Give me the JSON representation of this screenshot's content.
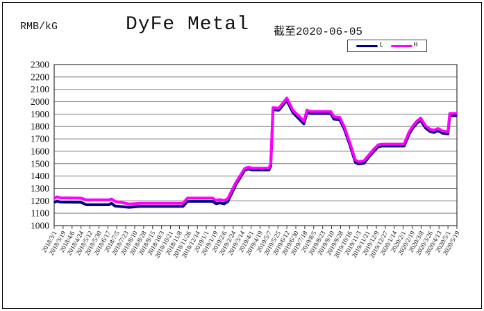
{
  "header": {
    "unit_label": "RMB/kG",
    "title": "DyFe Metal",
    "subtitle": "截至2020-06-05"
  },
  "legend": {
    "items": [
      {
        "label": "L",
        "color": "#000080"
      },
      {
        "label": "H",
        "color": "#FF00FF"
      }
    ]
  },
  "chart_data": {
    "type": "line",
    "title": "DyFe Metal",
    "subtitle": "截至2020-06-05",
    "ylabel": "RMB/kG",
    "ylim": [
      1000,
      2300
    ],
    "y_tick_step": 100,
    "y_ticks": [
      1000,
      1100,
      1200,
      1300,
      1400,
      1500,
      1600,
      1700,
      1800,
      1900,
      2000,
      2100,
      2200,
      2300
    ],
    "grid": true,
    "legend_position": "top-right",
    "categories": [
      "2018/3/1",
      "2018/3/19",
      "2018/4/6",
      "2018/4/24",
      "2018/5/12",
      "2018/5/30",
      "2018/6/17",
      "2018/7/5",
      "2018/7/23",
      "2018/8/10",
      "2018/8/28",
      "2018/9/15",
      "2018/10/3",
      "2018/10/21",
      "2018/11/8",
      "2018/11/26",
      "2018/12/14",
      "2019/1/1",
      "2019/1/19",
      "2019/2/6",
      "2019/2/24",
      "2019/3/14",
      "2019/4/1",
      "2019/4/19",
      "2019/5/7",
      "2019/5/25",
      "2019/6/12",
      "2019/6/30",
      "2019/7/18",
      "2019/8/5",
      "2019/8/23",
      "2019/9/10",
      "2019/9/28",
      "2019/10/16",
      "2019/11/3",
      "2019/11/21",
      "2019/12/9",
      "2019/12/27",
      "2020/1/14",
      "2020/2/1",
      "2020/2/19",
      "2020/3/8",
      "2020/3/26",
      "2020/4/13",
      "2020/5/1",
      "2020/5/19"
    ],
    "point_format": "[category_index, value_RMB_per_kG]",
    "series": [
      {
        "name": "L",
        "color": "#000080",
        "points": [
          [
            0,
            1186
          ],
          [
            0.3,
            1198
          ],
          [
            0.7,
            1190
          ],
          [
            3.0,
            1188
          ],
          [
            3.6,
            1168
          ],
          [
            6.1,
            1168
          ],
          [
            6.4,
            1180
          ],
          [
            6.8,
            1158
          ],
          [
            8.4,
            1148
          ],
          [
            9.6,
            1156
          ],
          [
            14.4,
            1156
          ],
          [
            14.9,
            1196
          ],
          [
            17.7,
            1196
          ],
          [
            18.1,
            1177
          ],
          [
            18.5,
            1184
          ],
          [
            19.0,
            1176
          ],
          [
            19.4,
            1194
          ],
          [
            20.3,
            1330
          ],
          [
            21.3,
            1448
          ],
          [
            21.7,
            1458
          ],
          [
            22.1,
            1450
          ],
          [
            24.0,
            1450
          ],
          [
            24.2,
            1480
          ],
          [
            24.45,
            1935
          ],
          [
            25.1,
            1932
          ],
          [
            26.0,
            2010
          ],
          [
            26.7,
            1910
          ],
          [
            27.5,
            1852
          ],
          [
            27.9,
            1822
          ],
          [
            28.25,
            1914
          ],
          [
            28.6,
            1905
          ],
          [
            30.9,
            1905
          ],
          [
            31.25,
            1860
          ],
          [
            31.9,
            1856
          ],
          [
            32.4,
            1782
          ],
          [
            33.1,
            1638
          ],
          [
            33.65,
            1512
          ],
          [
            34.0,
            1497
          ],
          [
            34.6,
            1503
          ],
          [
            35.1,
            1548
          ],
          [
            35.7,
            1598
          ],
          [
            36.2,
            1636
          ],
          [
            36.6,
            1642
          ],
          [
            39.1,
            1642
          ],
          [
            39.65,
            1738
          ],
          [
            40.1,
            1790
          ],
          [
            40.55,
            1828
          ],
          [
            40.95,
            1850
          ],
          [
            41.5,
            1788
          ],
          [
            42.0,
            1760
          ],
          [
            42.45,
            1752
          ],
          [
            42.9,
            1766
          ],
          [
            43.4,
            1746
          ],
          [
            44.0,
            1740
          ],
          [
            44.2,
            1886
          ],
          [
            45,
            1888
          ]
        ]
      },
      {
        "name": "H",
        "color": "#FF00FF",
        "points": [
          [
            0,
            1218
          ],
          [
            0.3,
            1232
          ],
          [
            0.7,
            1224
          ],
          [
            3.0,
            1222
          ],
          [
            3.6,
            1208
          ],
          [
            6.1,
            1208
          ],
          [
            6.4,
            1215
          ],
          [
            6.8,
            1196
          ],
          [
            8.4,
            1174
          ],
          [
            9.6,
            1181
          ],
          [
            14.4,
            1181
          ],
          [
            14.9,
            1222
          ],
          [
            17.7,
            1222
          ],
          [
            18.1,
            1203
          ],
          [
            18.5,
            1210
          ],
          [
            19.0,
            1202
          ],
          [
            19.4,
            1218
          ],
          [
            20.3,
            1348
          ],
          [
            21.3,
            1462
          ],
          [
            21.7,
            1472
          ],
          [
            22.1,
            1464
          ],
          [
            24.0,
            1464
          ],
          [
            24.2,
            1500
          ],
          [
            24.45,
            1952
          ],
          [
            25.1,
            1948
          ],
          [
            26.0,
            2030
          ],
          [
            26.7,
            1928
          ],
          [
            27.5,
            1874
          ],
          [
            27.9,
            1843
          ],
          [
            28.25,
            1932
          ],
          [
            28.6,
            1922
          ],
          [
            30.9,
            1922
          ],
          [
            31.25,
            1878
          ],
          [
            31.9,
            1874
          ],
          [
            32.4,
            1800
          ],
          [
            33.1,
            1655
          ],
          [
            33.65,
            1530
          ],
          [
            34.0,
            1516
          ],
          [
            34.6,
            1522
          ],
          [
            35.1,
            1565
          ],
          [
            35.7,
            1615
          ],
          [
            36.2,
            1652
          ],
          [
            36.6,
            1658
          ],
          [
            39.1,
            1658
          ],
          [
            39.65,
            1755
          ],
          [
            40.1,
            1806
          ],
          [
            40.55,
            1845
          ],
          [
            40.95,
            1868
          ],
          [
            41.5,
            1805
          ],
          [
            42.0,
            1778
          ],
          [
            42.45,
            1770
          ],
          [
            42.9,
            1784
          ],
          [
            43.4,
            1764
          ],
          [
            44.0,
            1758
          ],
          [
            44.2,
            1905
          ],
          [
            45,
            1906
          ]
        ]
      }
    ],
    "style": {
      "grid_color": "#7f7f7f",
      "axis_color": "#333333",
      "line_width": 4
    }
  }
}
